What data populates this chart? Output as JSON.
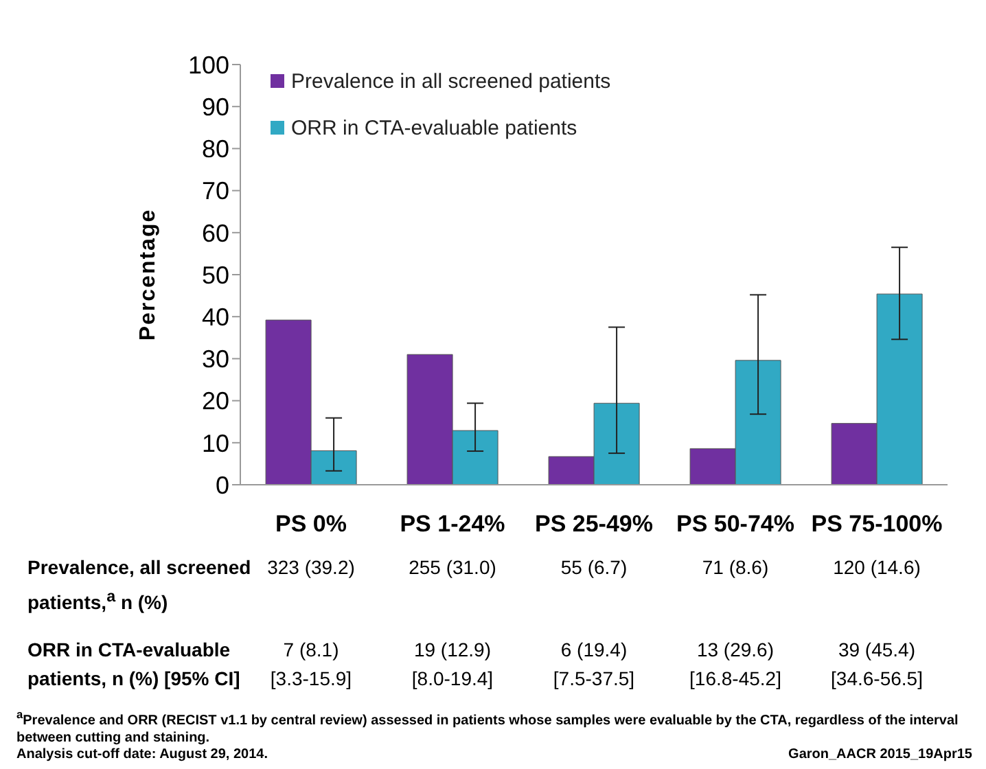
{
  "chart_data": {
    "type": "bar",
    "ylabel": "Percentage",
    "categories": [
      "PS 0%",
      "PS 1-24%",
      "PS 25-49%",
      "PS 50-74%",
      "PS 75-100%"
    ],
    "series": [
      {
        "name": "Prevalence in all screened patients",
        "color": "#7030a0",
        "values": [
          39.2,
          31.0,
          6.7,
          8.6,
          14.6
        ],
        "value_labels": [
          "323 (39.2)",
          "255 (31.0)",
          "55 (6.7)",
          "71 (8.6)",
          "120 (14.6)"
        ]
      },
      {
        "name": "ORR in CTA-evaluable patients",
        "color": "#31a9c4",
        "values": [
          8.1,
          12.9,
          19.4,
          29.6,
          45.4
        ],
        "errors": [
          [
            3.3,
            15.9
          ],
          [
            8.0,
            19.4
          ],
          [
            7.5,
            37.5
          ],
          [
            16.8,
            45.2
          ],
          [
            34.6,
            56.5
          ]
        ],
        "value_labels": [
          "7 (8.1)\n[3.3-15.9]",
          "19 (12.9)\n[8.0-19.4]",
          "6 (19.4)\n[7.5-37.5]",
          "13 (29.6)\n[16.8-45.2]",
          "39 (45.4)\n[34.6-56.5]"
        ]
      }
    ],
    "ylim": [
      0,
      100
    ],
    "yticks": [
      0,
      10,
      20,
      30,
      40,
      50,
      60,
      70,
      80,
      90,
      100
    ],
    "grid": false,
    "legend": "top left",
    "annotations": [
      "Prevalence, all screened patients,$^{a}$ n (%)",
      "ORR in CTA-evaluable patients, n (%) [95% CI]",
      "$^{a}$Prevalence and ORR (RECIST v1.1 by central review) assessed in patients whose samples were evaluable by the CTA, regardless of the interval between cutting and staining.",
      "Analysis cut-off date: August 29, 2014.",
      "Garon_AACR 2015_19Apr15"
    ]
  }
}
